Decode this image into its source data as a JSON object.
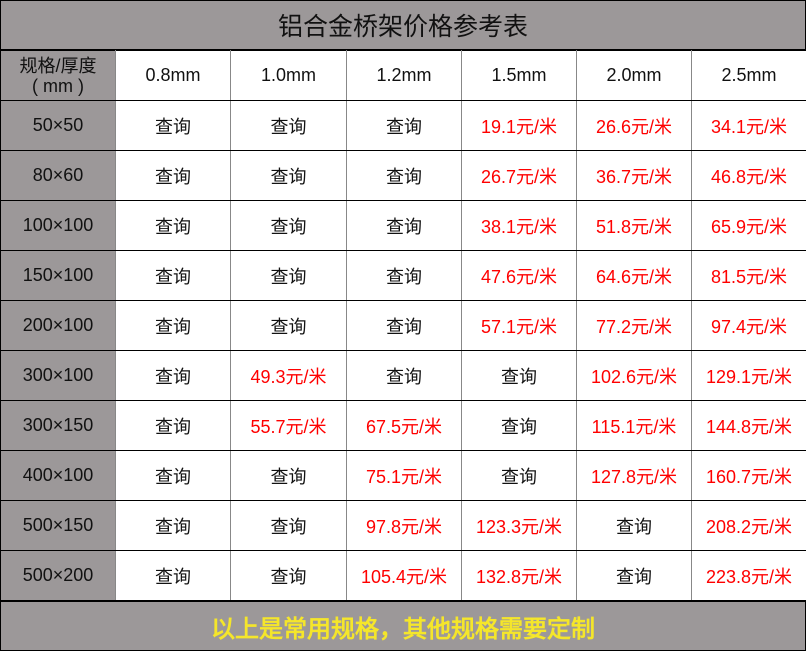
{
  "title": "铝合金桥架价格参考表",
  "header": {
    "corner": "规格/厚度",
    "corner_unit": "( mm )",
    "thickness": [
      "0.8mm",
      "1.0mm",
      "1.2mm",
      "1.5mm",
      "2.0mm",
      "2.5mm"
    ]
  },
  "rows": [
    {
      "spec": "50×50",
      "cells": [
        "查询",
        "查询",
        "查询",
        "19.1元/米",
        "26.6元/米",
        "34.1元/米"
      ]
    },
    {
      "spec": "80×60",
      "cells": [
        "查询",
        "查询",
        "查询",
        "26.7元/米",
        "36.7元/米",
        "46.8元/米"
      ]
    },
    {
      "spec": "100×100",
      "cells": [
        "查询",
        "查询",
        "查询",
        "38.1元/米",
        "51.8元/米",
        "65.9元/米"
      ]
    },
    {
      "spec": "150×100",
      "cells": [
        "查询",
        "查询",
        "查询",
        "47.6元/米",
        "64.6元/米",
        "81.5元/米"
      ]
    },
    {
      "spec": "200×100",
      "cells": [
        "查询",
        "查询",
        "查询",
        "57.1元/米",
        "77.2元/米",
        "97.4元/米"
      ]
    },
    {
      "spec": "300×100",
      "cells": [
        "查询",
        "49.3元/米",
        "查询",
        "查询",
        "102.6元/米",
        "129.1元/米"
      ]
    },
    {
      "spec": "300×150",
      "cells": [
        "查询",
        "55.7元/米",
        "67.5元/米",
        "查询",
        "115.1元/米",
        "144.8元/米"
      ]
    },
    {
      "spec": "400×100",
      "cells": [
        "查询",
        "查询",
        "75.1元/米",
        "查询",
        "127.8元/米",
        "160.7元/米"
      ]
    },
    {
      "spec": "500×150",
      "cells": [
        "查询",
        "查询",
        "97.8元/米",
        "123.3元/米",
        "查询",
        "208.2元/米"
      ]
    },
    {
      "spec": "500×200",
      "cells": [
        "查询",
        "查询",
        "105.4元/米",
        "132.8元/米",
        "查询",
        "223.8元/米"
      ]
    }
  ],
  "footer": "以上是常用规格，其他规格需要定制",
  "colors": {
    "header_bg": "#9c9899",
    "price": "#ff0000",
    "footer_text": "#f5e62a"
  }
}
